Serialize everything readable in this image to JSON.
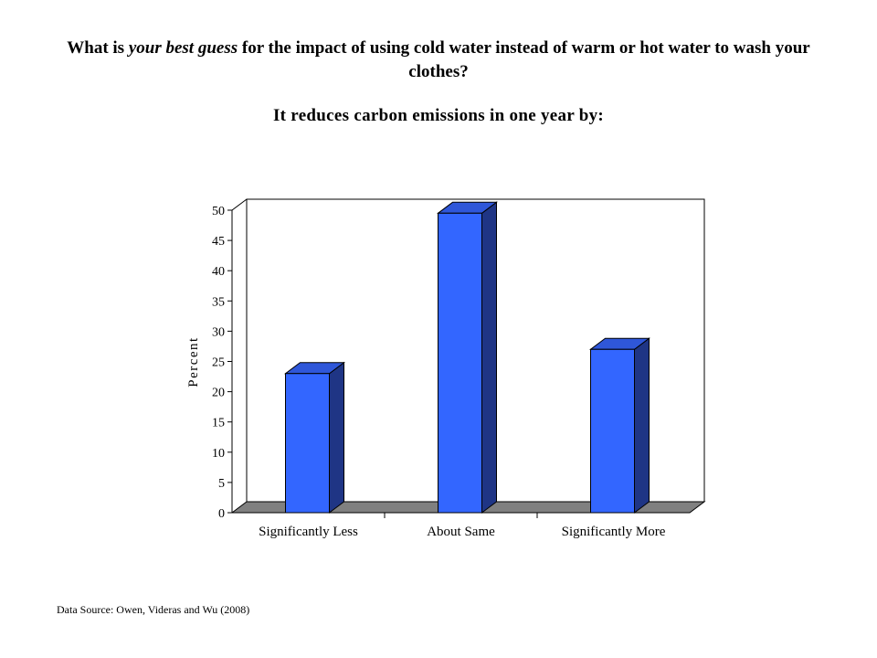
{
  "header": {
    "question_part1": "What is ",
    "question_emphasis": "your best guess",
    "question_part2": " for the impact of using cold water instead of warm or hot water to wash your clothes?",
    "subtitle": "It reduces carbon emissions in one year by:"
  },
  "chart_data": {
    "type": "bar",
    "style": "3d",
    "categories": [
      "Significantly Less",
      "About Same",
      "Significantly More"
    ],
    "values": [
      23,
      49.5,
      27
    ],
    "ylabel": "Percent",
    "xlabel": "",
    "ylim": [
      0,
      50
    ],
    "yticks": [
      0,
      5,
      10,
      15,
      20,
      25,
      30,
      35,
      40,
      45,
      50
    ],
    "grid": false,
    "legend": "none",
    "colors": {
      "bar_front": "#3366ff",
      "bar_top": "#2f57d9",
      "bar_side": "#1f3585",
      "floor": "#808080"
    }
  },
  "footer": {
    "source": "Data Source: Owen, Videras and Wu (2008)"
  }
}
